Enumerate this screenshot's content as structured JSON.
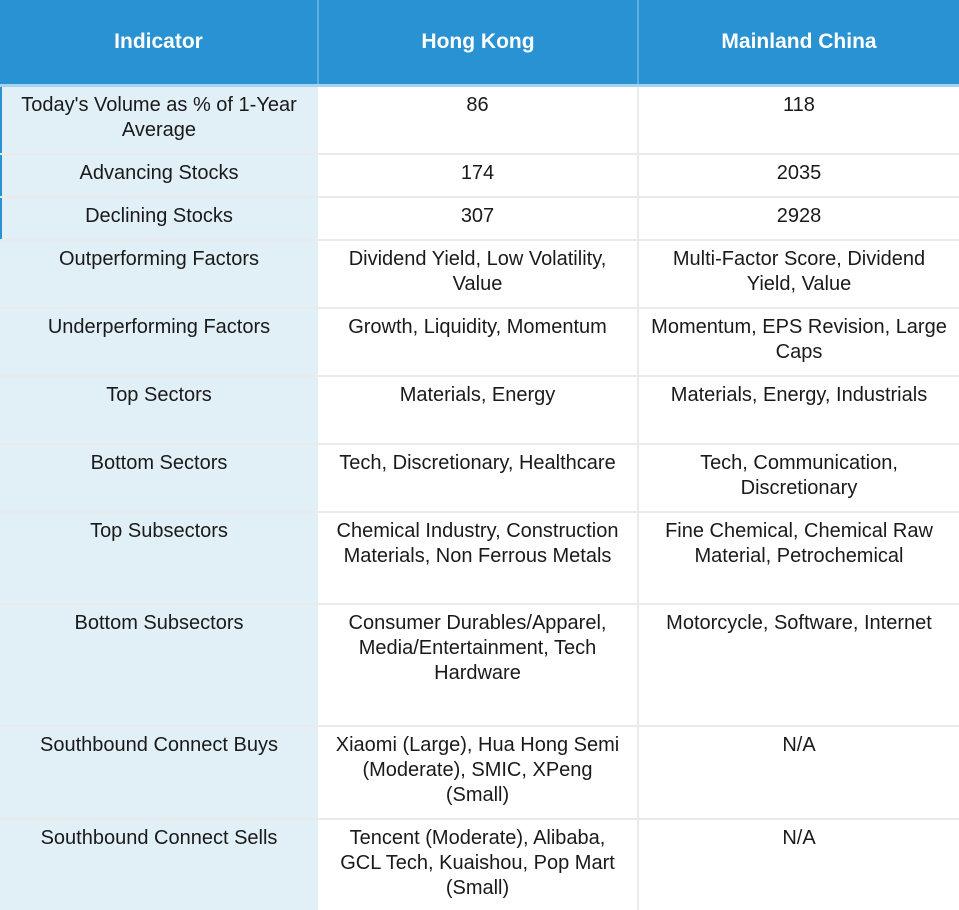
{
  "chart_data": {
    "type": "table",
    "columns": [
      "Indicator",
      "Hong Kong",
      "Mainland China"
    ],
    "rows": [
      {
        "indicator": "Today's Volume as % of 1-Year Average",
        "hong_kong": "86",
        "mainland_china": "118"
      },
      {
        "indicator": "Advancing Stocks",
        "hong_kong": "174",
        "mainland_china": "2035"
      },
      {
        "indicator": "Declining Stocks",
        "hong_kong": "307",
        "mainland_china": "2928"
      },
      {
        "indicator": "Outperforming Factors",
        "hong_kong": "Dividend Yield, Low Volatility, Value",
        "mainland_china": "Multi-Factor Score, Dividend Yield, Value"
      },
      {
        "indicator": "Underperforming Factors",
        "hong_kong": "Growth, Liquidity, Momentum",
        "mainland_china": "Momentum, EPS Revision, Large Caps"
      },
      {
        "indicator": "Top Sectors",
        "hong_kong": "Materials, Energy",
        "mainland_china": "Materials, Energy, Industrials"
      },
      {
        "indicator": "Bottom Sectors",
        "hong_kong": "Tech, Discretionary, Healthcare",
        "mainland_china": "Tech, Communication, Discretionary"
      },
      {
        "indicator": "Top Subsectors",
        "hong_kong": "Chemical Industry, Construction Materials, Non Ferrous Metals",
        "mainland_china": "Fine Chemical, Chemical Raw Material, Petrochemical"
      },
      {
        "indicator": "Bottom Subsectors",
        "hong_kong": "Consumer Durables/Apparel, Media/Entertainment, Tech Hardware",
        "mainland_china": "Motorcycle, Software, Internet"
      },
      {
        "indicator": "Southbound Connect Buys",
        "hong_kong": "Xiaomi (Large), Hua Hong Semi (Moderate), SMIC, XPeng (Small)",
        "mainland_china": "N/A"
      },
      {
        "indicator": "Southbound Connect Sells",
        "hong_kong": "Tencent (Moderate), Alibaba, GCL Tech, Kuaishou, Pop Mart (Small)",
        "mainland_china": "N/A"
      }
    ],
    "title": "",
    "legend": null
  },
  "colors": {
    "header_bg": "#2992D2",
    "header_text": "#FFFFFF",
    "header_divider": "#5FAEDC",
    "header_bottom": "#A6D3ED",
    "indicator_col_bg": "#E1EFF7",
    "cell_bg": "#FFFFFF",
    "body_text": "#1A1A1A",
    "divider": "#EAEAEA",
    "accent_left": "#2992D2"
  }
}
